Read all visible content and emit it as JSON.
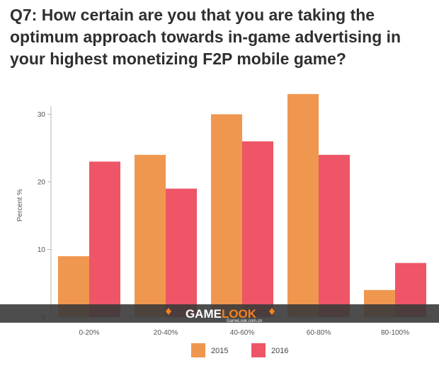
{
  "title": "Q7: How certain are you that you are taking the optimum approach towards in-game advertising in your highest monetizing F2P mobile game?",
  "watermark": {
    "brand_a": "GAME",
    "brand_b": "LOOK",
    "site": "GameLook.com.cn"
  },
  "colors": {
    "s2015": "#F0974F",
    "s2016": "#EE5566",
    "grid": "#e7e7e7",
    "axis": "#b5b5b5",
    "watermark_band": "#3a3a3a",
    "watermark_accent": "#F5811E"
  },
  "chart_data": {
    "type": "bar",
    "title": "Q7: How certain are you that you are taking the optimum approach towards in-game advertising in your highest monetizing F2P mobile game?",
    "xlabel": "",
    "ylabel": "Percent %",
    "categories": [
      "0-20%",
      "20-40%",
      "40-60%",
      "60-80%",
      "80-100%"
    ],
    "series": [
      {
        "name": "2015",
        "values": [
          9,
          24,
          30,
          33,
          4
        ]
      },
      {
        "name": "2016",
        "values": [
          23,
          19,
          26,
          24,
          8
        ]
      }
    ],
    "ylim": [
      0,
      35
    ],
    "yticks": [
      0,
      10,
      20,
      30
    ],
    "legend": "bottom",
    "grid": false
  }
}
